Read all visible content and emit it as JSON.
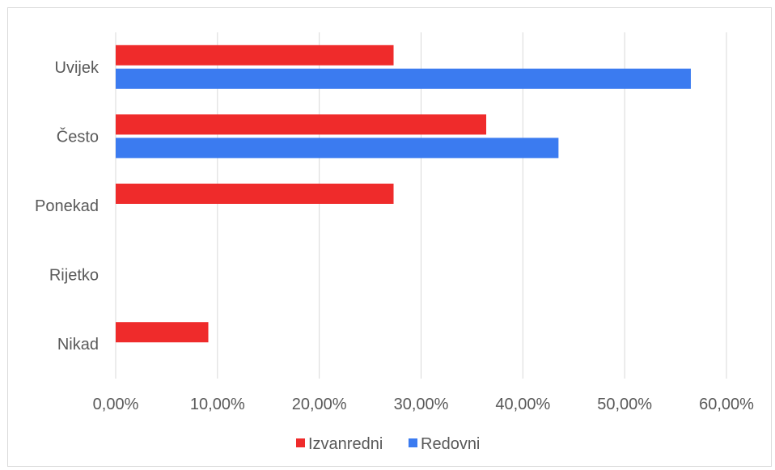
{
  "chart_data": {
    "type": "bar",
    "orientation": "horizontal",
    "categories": [
      "Uvijek",
      "Često",
      "Ponekad",
      "Rijetko",
      "Nikad"
    ],
    "series": [
      {
        "name": "Izvanredni",
        "color": "#ef2b2b",
        "values": [
          27.3,
          36.4,
          27.3,
          0.0,
          9.1
        ]
      },
      {
        "name": "Redovni",
        "color": "#3b7bf0",
        "values": [
          56.5,
          43.5,
          0.0,
          0.0,
          0.0
        ]
      }
    ],
    "xlim": [
      0,
      60
    ],
    "xticks": [
      0,
      10,
      20,
      30,
      40,
      50,
      60
    ],
    "xtick_labels": [
      "0,00%",
      "10,00%",
      "20,00%",
      "30,00%",
      "40,00%",
      "50,00%",
      "60,00%"
    ],
    "gridlines": "vertical",
    "legend_position": "bottom"
  }
}
